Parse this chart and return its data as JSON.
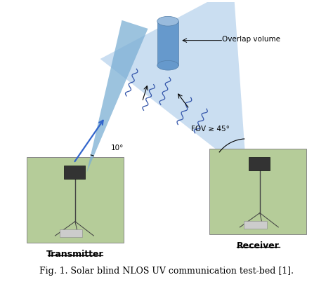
{
  "caption": "Fig. 1. Solar blind NLOS UV communication test-bed [1].",
  "caption_fontsize": 9,
  "bg_color": "#ffffff",
  "beam_color": "#a8c8e8",
  "beam_color_dark": "#7bafd4",
  "overlap_color": "#6699cc",
  "tx_label": "Transmitter",
  "rx_label": "Receiver",
  "angle_label": "10°",
  "fov_label": "FOV ≥ 45°",
  "overlap_label": "Overlap volume",
  "wavy_color": "#3355aa",
  "arrow_color": "#3366cc",
  "photo_grass_color": "#b5cc99",
  "photo_edge_color": "#888888"
}
